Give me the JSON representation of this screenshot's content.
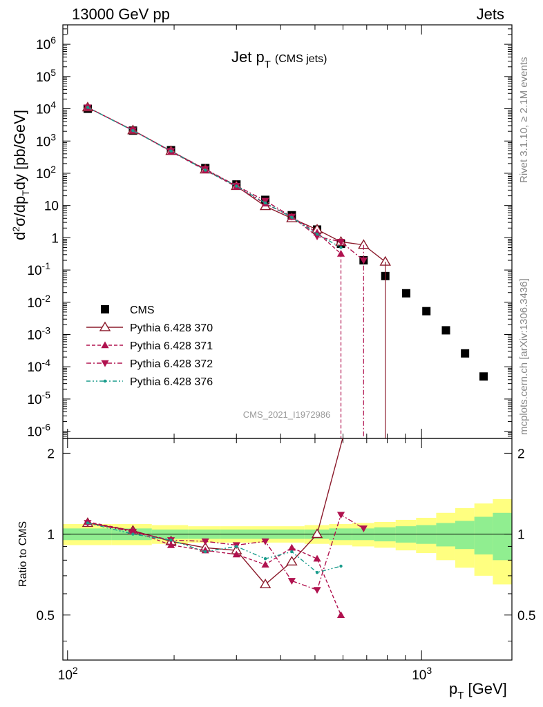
{
  "header": {
    "left": "13000 GeV pp",
    "right": "Jets"
  },
  "side_labels": {
    "top": "Rivet 3.1.10, ≥ 2.1M events",
    "bottom": "mcplots.cern.ch [arXiv:1306.3436]"
  },
  "watermark": "CMS_2021_I1972986",
  "chart_data": [
    {
      "type": "scatter",
      "title": "Jet p_T (CMS jets)",
      "title_main": "Jet p",
      "title_sub": "T",
      "title_suffix": "(CMS jets)",
      "xlabel": "p_T [GeV]",
      "ylabel": "d²σ/dp_T dy [pb/GeV]",
      "x_scale": "log",
      "y_scale": "log",
      "xlim": [
        97,
        1800
      ],
      "ylim": [
        6e-07,
        4000000.0
      ],
      "y_ticks": [
        "10^-6",
        "10^-5",
        "10^-4",
        "10^-3",
        "10^-2",
        "10^-1",
        "1",
        "10",
        "10^2",
        "10^3",
        "10^4",
        "10^5",
        "10^6"
      ],
      "x_ticks": [
        "10^2",
        "10^3"
      ],
      "legend_position": "middle-left",
      "x": [
        114,
        153,
        196,
        245,
        300,
        362,
        430,
        507,
        592,
        686,
        790,
        905,
        1032,
        1172,
        1327,
        1497,
        1684
      ],
      "series": [
        {
          "name": "CMS",
          "color": "#000000",
          "marker": "square",
          "x": [
            114,
            153,
            196,
            245,
            300,
            362,
            430,
            507,
            592,
            686,
            790,
            905,
            1032,
            1172,
            1327,
            1497,
            1684
          ],
          "values": [
            10000,
            2100,
            520,
            145,
            45,
            15,
            5.0,
            1.8,
            0.65,
            0.2,
            0.065,
            0.019,
            0.0053,
            0.00135,
            0.00026,
            5e-05,
            null
          ]
        },
        {
          "name": "Pythia 6.428 370",
          "color": "#8b1a2b",
          "marker": "open-triangle-up",
          "line": "solid",
          "x": [
            114,
            153,
            196,
            245,
            300,
            362,
            430,
            507,
            592,
            686,
            790
          ],
          "values": [
            11000,
            2150,
            490,
            130,
            40,
            9.5,
            4.0,
            1.8,
            0.75,
            0.6,
            0.18
          ]
        },
        {
          "name": "Pythia 6.428 371",
          "color": "#b0124f",
          "marker": "triangle-up",
          "line": "dashed",
          "x": [
            114,
            153,
            196,
            245,
            300,
            362,
            430,
            507,
            592
          ],
          "values": [
            11000,
            2150,
            470,
            125,
            38,
            11.5,
            4.4,
            1.45,
            0.32
          ]
        },
        {
          "name": "Pythia 6.428 372",
          "color": "#b0124f",
          "marker": "triangle-down",
          "line": "dashdot",
          "x": [
            114,
            153,
            196,
            245,
            300,
            362,
            430,
            507,
            592,
            686
          ],
          "values": [
            11000,
            2150,
            490,
            135,
            41,
            14,
            4.5,
            1.1,
            0.75,
            0.2
          ]
        },
        {
          "name": "Pythia 6.428 376",
          "color": "#1a9c8c",
          "marker": "dot",
          "line": "dashdotdot",
          "x": [
            114,
            153,
            196,
            245,
            300,
            362,
            430,
            507,
            592
          ],
          "values": [
            11000,
            2100,
            490,
            125,
            40,
            12,
            4.3,
            1.3,
            0.5
          ]
        }
      ]
    },
    {
      "type": "scatter",
      "xlabel": "p_T [GeV]",
      "ylabel": "Ratio to CMS",
      "x_scale": "log",
      "xlim": [
        97,
        1800
      ],
      "ylim": [
        0.34,
        2.27
      ],
      "y_ticks": [
        "0.5",
        "1",
        "2"
      ],
      "reference_bands": {
        "x_edges": [
          97,
          133,
          173,
          219,
          270,
          330,
          395,
          467,
          548,
          637,
          735,
          845,
          965,
          1100,
          1245,
          1410,
          1590,
          1800
        ],
        "inner": [
          0.05,
          0.05,
          0.04,
          0.04,
          0.04,
          0.04,
          0.04,
          0.04,
          0.05,
          0.05,
          0.06,
          0.07,
          0.08,
          0.1,
          0.12,
          0.16,
          0.2
        ],
        "outer": [
          0.09,
          0.09,
          0.08,
          0.07,
          0.07,
          0.07,
          0.07,
          0.08,
          0.09,
          0.1,
          0.11,
          0.13,
          0.15,
          0.2,
          0.25,
          0.3,
          0.35
        ],
        "inner_color": "#90ee90",
        "outer_color": "#ffff80"
      },
      "series": [
        {
          "name": "Pythia 6.428 370",
          "color": "#8b1a2b",
          "x": [
            114,
            153,
            196,
            245,
            300,
            362,
            430,
            507,
            600
          ],
          "values": [
            1.1,
            1.03,
            0.94,
            0.89,
            0.87,
            0.65,
            0.79,
            1.0,
            2.3
          ]
        },
        {
          "name": "Pythia 6.428 371",
          "color": "#b0124f",
          "x": [
            114,
            153,
            196,
            245,
            300,
            362,
            430,
            507,
            592
          ],
          "values": [
            1.11,
            1.03,
            0.91,
            0.87,
            0.84,
            0.77,
            0.89,
            0.81,
            0.5
          ]
        },
        {
          "name": "Pythia 6.428 372",
          "color": "#b0124f",
          "x": [
            114,
            153,
            196,
            245,
            300,
            362,
            430,
            507,
            592,
            686
          ],
          "values": [
            1.1,
            1.02,
            0.95,
            0.94,
            0.91,
            0.94,
            0.67,
            0.62,
            1.18,
            1.05
          ]
        },
        {
          "name": "Pythia 6.428 376",
          "color": "#1a9c8c",
          "x": [
            114,
            153,
            196,
            245,
            300,
            362,
            430,
            507,
            592
          ],
          "values": [
            1.1,
            1.0,
            0.95,
            0.86,
            0.9,
            0.81,
            0.86,
            0.72,
            0.76
          ]
        }
      ]
    }
  ]
}
